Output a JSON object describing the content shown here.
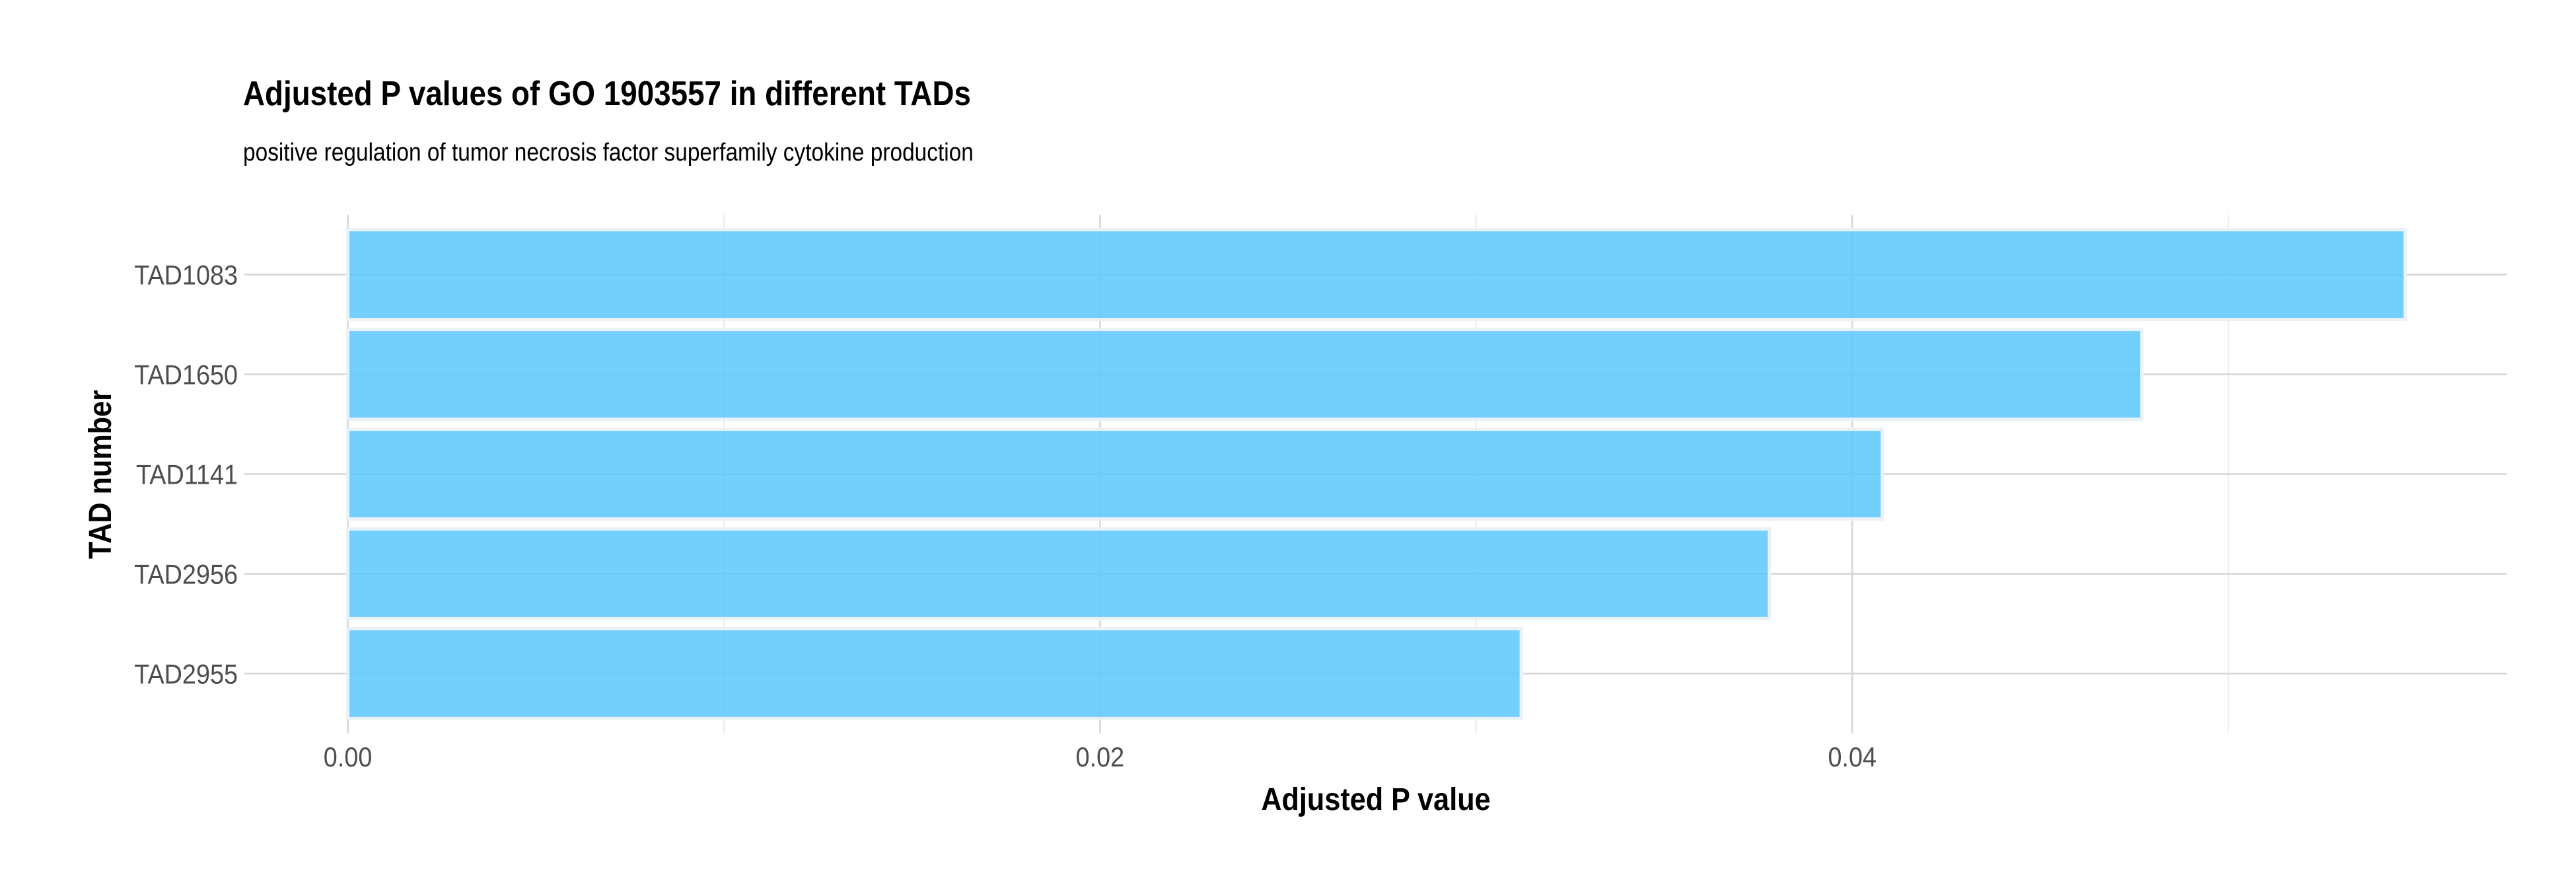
{
  "chart_data": {
    "type": "bar",
    "orientation": "horizontal",
    "title": "Adjusted P values of GO 1903557 in different TADs",
    "subtitle": "positive regulation of tumor necrosis factor superfamily cytokine production",
    "xlabel": "Adjusted P value",
    "ylabel": "TAD number",
    "categories": [
      "TAD1083",
      "TAD1650",
      "TAD1141",
      "TAD2956",
      "TAD2955"
    ],
    "values": [
      0.0547,
      0.0477,
      0.0408,
      0.0378,
      0.0312
    ],
    "xlim": [
      -0.00275,
      0.0574
    ],
    "xticks": [
      0,
      0.02,
      0.04
    ],
    "xtick_labels": [
      "0.00",
      "0.02",
      "0.04"
    ],
    "grid": true,
    "bar_color": "#5BC8FC",
    "bar_outline_color": "#EAF1F8",
    "grid_major_color": "#D6D6D6",
    "grid_minor_color": "#EBEBEB"
  }
}
